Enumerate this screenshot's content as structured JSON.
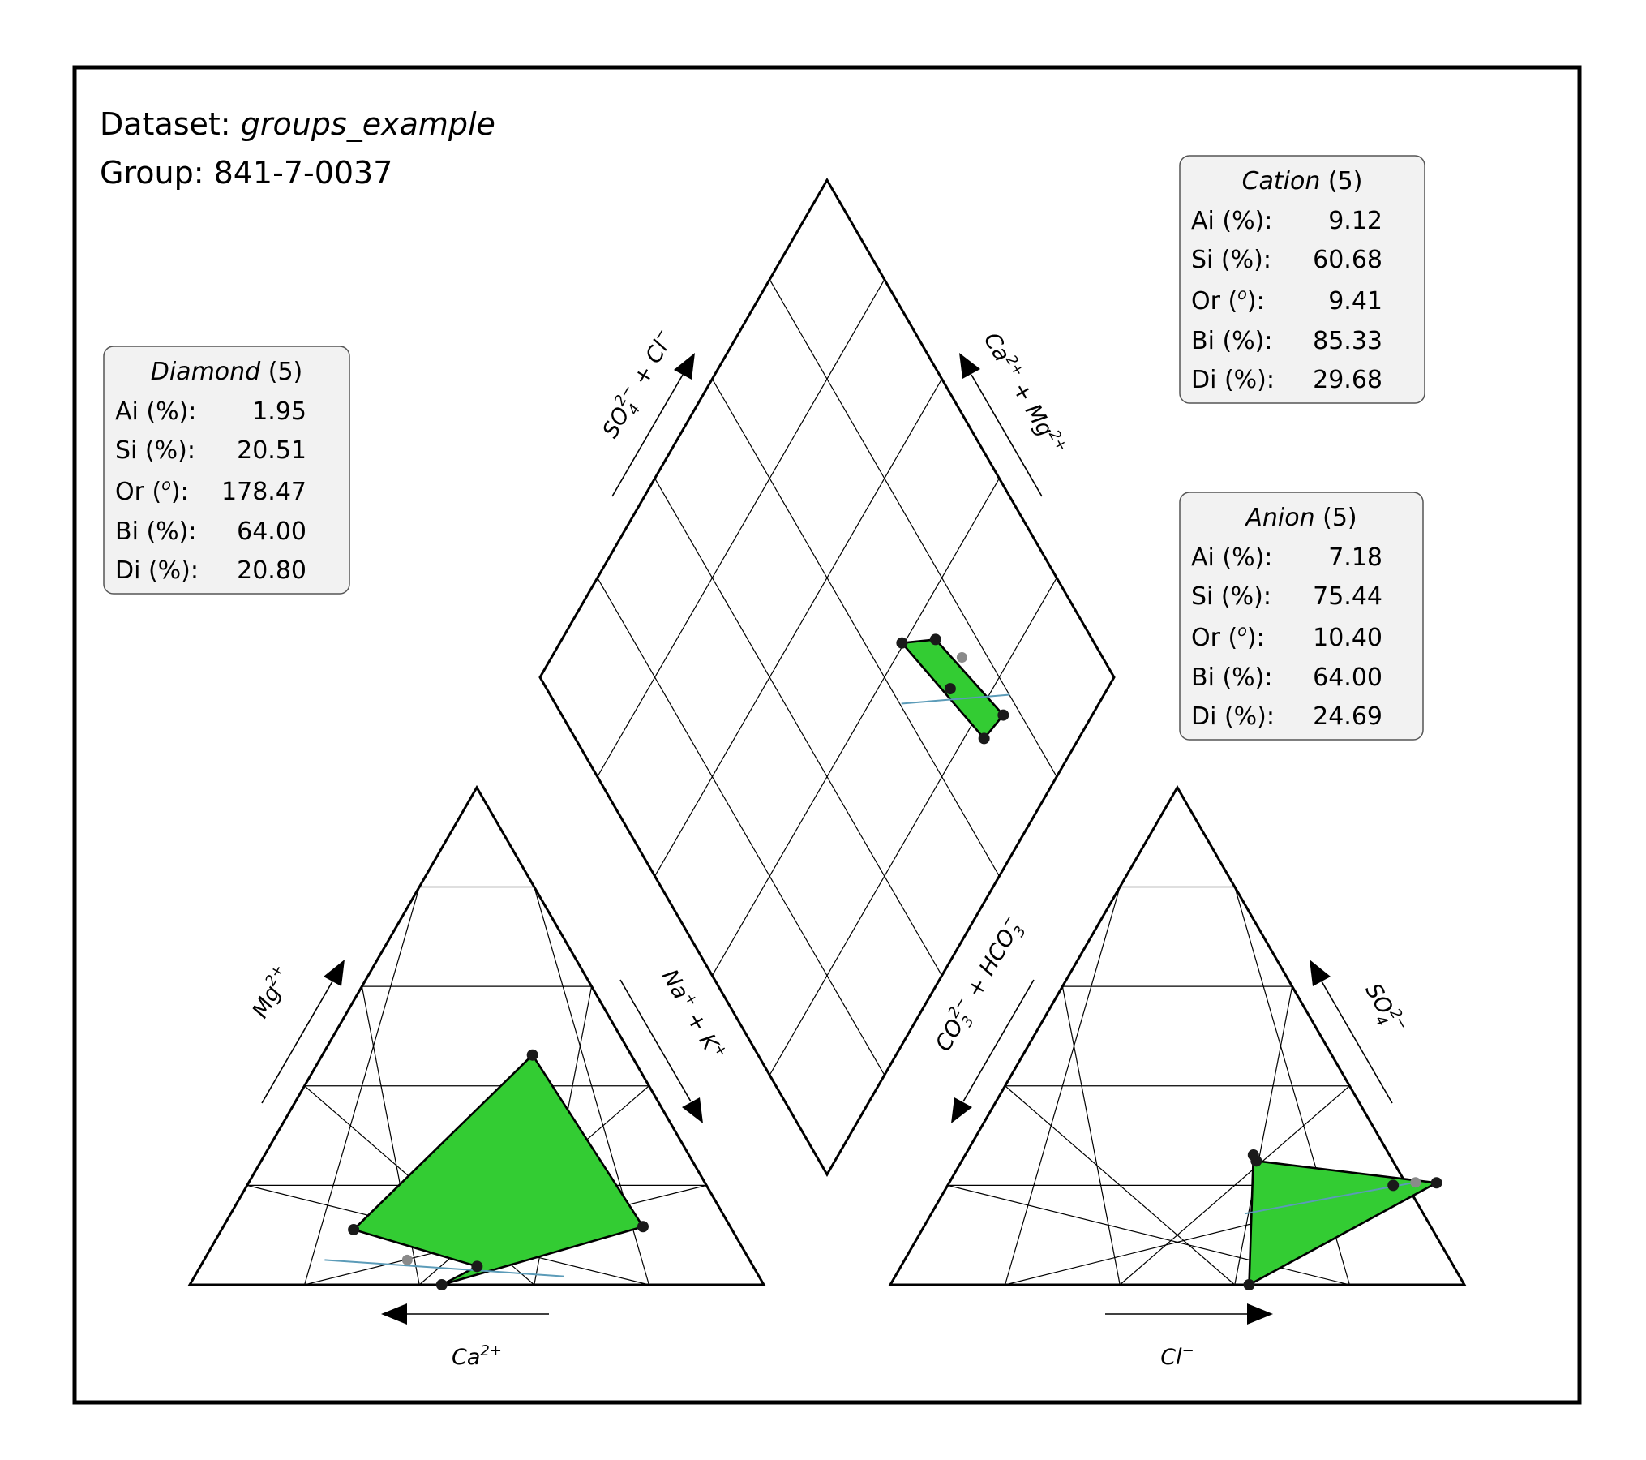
{
  "dataset_label": "Dataset: ",
  "dataset_name": "groups_example",
  "group_label": "Group: 841-7-0037",
  "stat_labels": [
    "Ai (%):",
    "Si (%):",
    "Or (",
    "o",
    "):",
    "Bi (%):",
    "Di (%):"
  ],
  "stats_boxes": {
    "diamond": {
      "title": "Diamond",
      "count": "(5)",
      "values": [
        "1.95",
        "20.51",
        "178.47",
        "64.00",
        "20.80"
      ]
    },
    "cation": {
      "title": "Cation",
      "count": "(5)",
      "values": [
        "9.12",
        "60.68",
        "9.41",
        "85.33",
        "29.68"
      ]
    },
    "anion": {
      "title": "Anion",
      "count": "(5)",
      "values": [
        "7.18",
        "75.44",
        "10.40",
        "64.00",
        "24.69"
      ]
    }
  },
  "axis_labels": {
    "ca": {
      "base": "Ca",
      "sup": "2+"
    },
    "mg": {
      "base": "Mg",
      "sup": "2+"
    },
    "na_k": {
      "a": "Na",
      "a_sup": "+",
      "b": " + K",
      "b_sup": "+"
    },
    "cl": {
      "base": "Cl",
      "sup": "−"
    },
    "so4": {
      "base": "SO",
      "sub": "4",
      "sup": "2−"
    },
    "co3_hco3": {
      "a": "CO",
      "a_sub": "3",
      "a_sup": "2−",
      "b": " + HCO",
      "b_sub": "3",
      "b_sup": "−"
    },
    "so4_cl": {
      "a": "SO",
      "a_sub": "4",
      "a_sup": "2−",
      "b": " + Cl",
      "b_sup": "−"
    },
    "ca_mg": {
      "a": "Ca",
      "a_sup": "2+",
      "b": " + Mg",
      "b_sup": "2+"
    }
  },
  "colors": {
    "polygon": "#33cc33",
    "trend": "#5b9bb8",
    "point": "#1a1a1a",
    "centroid": "#8a8a8a",
    "box": "#f2f2f2"
  },
  "chart_data": {
    "type": "scatter",
    "grid_step": 20,
    "cation": {
      "ca_percent": [
        65.9,
        15.2,
        17.2,
        48.1,
        56.1
      ],
      "mg_percent": [
        11.1,
        11.7,
        46.2,
        3.7,
        0.0
      ],
      "hull_order": [
        4,
        3,
        0,
        2,
        1
      ],
      "trend": [
        [
          34.0,
          1.7
        ],
        [
          74.0,
          5.0
        ]
      ],
      "centroid": [
        59.6,
        5.0
      ]
    },
    "anion": {
      "cl_percent": [
        50.2,
        51.3,
        84.9,
        62.5,
        77.6
      ],
      "so4_percent": [
        26.1,
        24.9,
        20.5,
        0.0,
        20.0
      ],
      "hull_order": [
        0,
        3,
        2,
        1
      ],
      "trend": [
        [
          54.6,
          14.3
        ],
        [
          81.2,
          20.6
        ]
      ],
      "centroid": [
        81.2,
        20.6
      ]
    },
    "diamond": {
      "so4_cl_percent": [
        66.5,
        72.7,
        76.9,
        71.2,
        70.3
      ],
      "ca_mg_percent": [
        40.4,
        34.9,
        15.5,
        16.5,
        27.4
      ],
      "hull_order": [
        0,
        1,
        2,
        3
      ],
      "trend": [
        [
          60.3,
          34.4
        ],
        [
          80.1,
          16.4
        ]
      ],
      "centroid": [
        75.5,
        28.5
      ]
    }
  }
}
